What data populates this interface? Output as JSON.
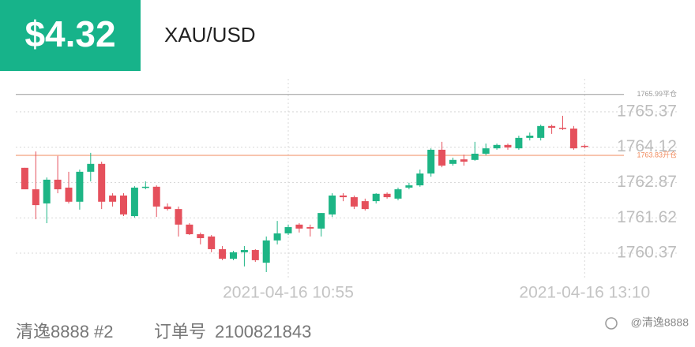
{
  "header": {
    "price": "$4.32",
    "symbol": "XAU/USD"
  },
  "footer": {
    "account": "清逸8888 #2",
    "order_label": "订单号",
    "order_number": "2100821843",
    "watermark": "@清逸8888"
  },
  "chart_data": {
    "type": "candlestick",
    "categories": [
      null,
      null,
      null,
      null,
      null,
      null,
      null,
      null,
      null,
      null,
      null,
      null,
      null,
      null,
      null,
      null,
      null,
      null,
      null,
      null,
      null,
      null,
      null,
      null,
      "2021-04-16 10:55",
      null,
      null,
      null,
      null,
      null,
      null,
      null,
      null,
      null,
      null,
      null,
      null,
      null,
      null,
      null,
      null,
      null,
      null,
      null,
      null,
      null,
      null,
      null,
      null,
      null,
      null,
      "2021-04-16 13:10"
    ],
    "open": [
      1763.39,
      1762.63,
      1762.13,
      1762.97,
      1762.69,
      1762.19,
      1763.25,
      1763.53,
      1762.41,
      1762.41,
      1761.68,
      1762.69,
      1762.72,
      1762.02,
      1761.93,
      1761.38,
      1761.04,
      1760.96,
      1760.51,
      1760.17,
      1760.4,
      1760.48,
      1760.03,
      1760.82,
      1761.07,
      1761.38,
      1761.29,
      1761.24,
      1761.74,
      1762.41,
      1762.35,
      1762.21,
      1762.21,
      1762.47,
      1762.3,
      1762.69,
      1762.77,
      1763.19,
      1764.03,
      1763.53,
      1763.69,
      1763.67,
      1763.89,
      1764.08,
      1764.2,
      1764.08,
      1764.45,
      1764.45,
      1764.87,
      1764.81,
      1764.78,
      1764.17
    ],
    "high": [
      1763.39,
      1763.97,
      1763.05,
      1763.81,
      1763.25,
      1763.33,
      1763.92,
      1763.61,
      1762.49,
      1762.49,
      1762.74,
      1762.91,
      1762.77,
      1762.13,
      1762.02,
      1761.43,
      1761.1,
      1761.01,
      1760.62,
      1760.45,
      1760.62,
      1760.51,
      1760.96,
      1761.51,
      1761.38,
      1761.43,
      1761.38,
      1761.79,
      1762.49,
      1762.49,
      1762.41,
      1762.3,
      1762.49,
      1762.52,
      1762.69,
      1762.86,
      1763.33,
      1764.08,
      1764.31,
      1763.75,
      1763.86,
      1764.31,
      1764.25,
      1764.25,
      1764.25,
      1764.53,
      1764.64,
      1764.92,
      1764.92,
      1765.23,
      1764.87,
      1764.22
    ],
    "low": [
      1762.63,
      1761.57,
      1761.43,
      1762.49,
      1762.13,
      1761.91,
      1762.91,
      1761.93,
      1762.02,
      1761.68,
      1761.63,
      1762.63,
      1761.65,
      1761.88,
      1760.96,
      1761.01,
      1760.68,
      1760.4,
      1760.12,
      1760.12,
      1759.9,
      1760.06,
      1759.7,
      1760.68,
      1761.01,
      1761.1,
      1760.96,
      1760.96,
      1761.65,
      1762.21,
      1761.93,
      1761.88,
      1762.13,
      1762.3,
      1762.24,
      1762.63,
      1762.72,
      1763.08,
      1763.41,
      1763.47,
      1763.47,
      1763.64,
      1763.83,
      1764.03,
      1764.03,
      1764.03,
      1764.36,
      1764.36,
      1764.59,
      1764.73,
      1764.03,
      1764.08
    ],
    "close": [
      1762.63,
      1762.07,
      1762.97,
      1762.63,
      1762.19,
      1763.25,
      1763.53,
      1762.19,
      1762.19,
      1761.74,
      1762.69,
      1762.72,
      1762.02,
      1761.93,
      1761.38,
      1761.04,
      1760.9,
      1760.51,
      1760.17,
      1760.4,
      1760.48,
      1760.12,
      1760.82,
      1761.07,
      1761.29,
      1761.24,
      1761.24,
      1761.79,
      1762.41,
      1762.35,
      1762.02,
      1761.93,
      1762.47,
      1762.35,
      1762.63,
      1762.77,
      1763.19,
      1764.03,
      1763.47,
      1763.67,
      1763.61,
      1763.89,
      1764.08,
      1764.2,
      1764.11,
      1764.45,
      1764.53,
      1764.87,
      1764.81,
      1764.78,
      1764.08,
      1764.14
    ],
    "up_color": "#1db585",
    "down_color": "#e5505c",
    "ylim": [
      1759.42,
      1766.54
    ],
    "yticks": [
      1760.37,
      1761.62,
      1762.87,
      1764.12,
      1765.37
    ],
    "grid": true,
    "ref_lines": [
      {
        "value": 1765.99,
        "label": "1765.99平仓",
        "color": "#9a9a9a"
      },
      {
        "value": 1763.83,
        "label": "1763.83开仓",
        "color": "#f08a5d"
      }
    ]
  }
}
